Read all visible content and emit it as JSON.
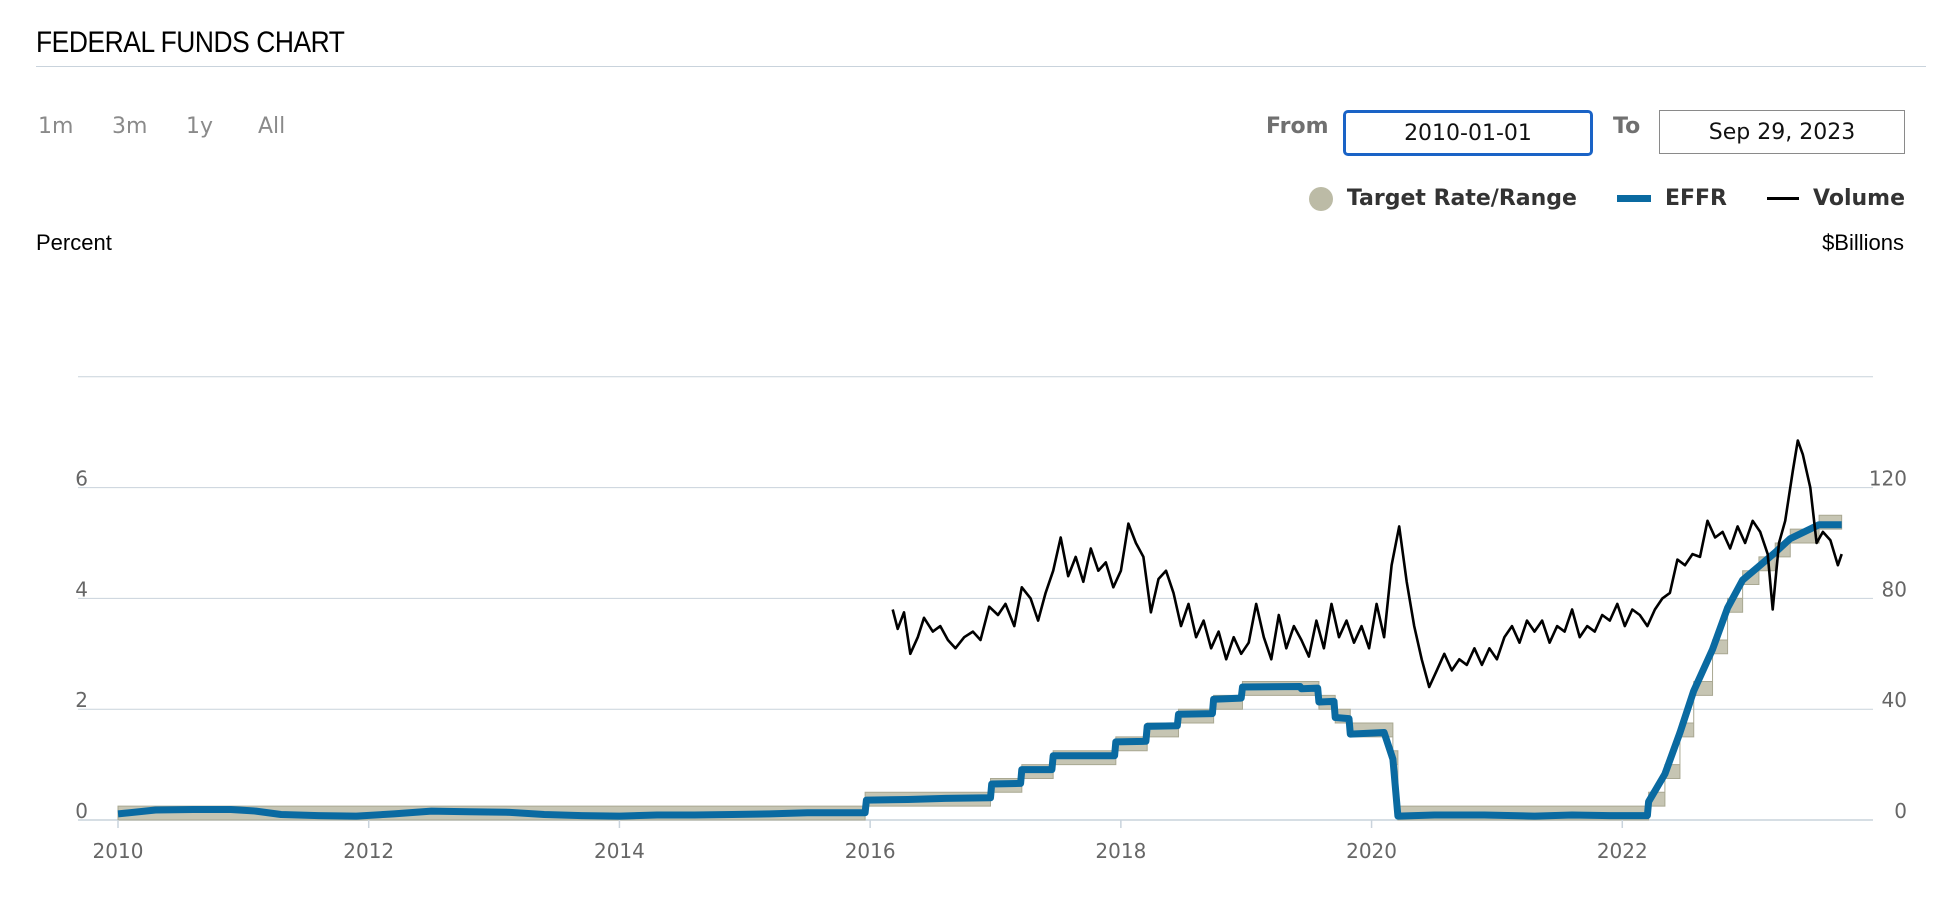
{
  "header": {
    "title": "FEDERAL FUNDS CHART"
  },
  "ranges": [
    "1m",
    "3m",
    "1y",
    "All"
  ],
  "date_range": {
    "from_label": "From",
    "from_value": "2010-01-01",
    "to_label": "To",
    "to_value": "Sep 29, 2023"
  },
  "legend": {
    "target": "Target Rate/Range",
    "effr": "EFFR",
    "volume": "Volume"
  },
  "colors": {
    "target_band": "#bcbba6",
    "effr": "#0a6aa1",
    "volume": "#000000",
    "grid": "#c9d3dc"
  },
  "chart_data": {
    "type": "line",
    "ylabel": "Percent",
    "y2label": "$Billions",
    "xlim": [
      2010.0,
      2024.0
    ],
    "ylim": [
      0,
      8
    ],
    "y2lim": [
      0,
      160
    ],
    "x_ticks": [
      2010,
      2012,
      2014,
      2016,
      2018,
      2020,
      2022
    ],
    "y_ticks": [
      0,
      2,
      4,
      6
    ],
    "y2_ticks": [
      0,
      40,
      80,
      120
    ],
    "grid": true,
    "legend_position": "top-right",
    "series": [
      {
        "name": "Target Rate/Range",
        "type": "area-band",
        "steps": [
          {
            "x": 2010.0,
            "lower": 0,
            "upper": 0.25
          },
          {
            "x": 2015.96,
            "lower": 0.25,
            "upper": 0.5
          },
          {
            "x": 2016.96,
            "lower": 0.5,
            "upper": 0.75
          },
          {
            "x": 2017.21,
            "lower": 0.75,
            "upper": 1.0
          },
          {
            "x": 2017.46,
            "lower": 1.0,
            "upper": 1.25
          },
          {
            "x": 2017.96,
            "lower": 1.25,
            "upper": 1.5
          },
          {
            "x": 2018.21,
            "lower": 1.5,
            "upper": 1.75
          },
          {
            "x": 2018.46,
            "lower": 1.75,
            "upper": 2.0
          },
          {
            "x": 2018.74,
            "lower": 2.0,
            "upper": 2.25
          },
          {
            "x": 2018.97,
            "lower": 2.25,
            "upper": 2.5
          },
          {
            "x": 2019.58,
            "lower": 2.0,
            "upper": 2.25
          },
          {
            "x": 2019.71,
            "lower": 1.75,
            "upper": 2.0
          },
          {
            "x": 2019.83,
            "lower": 1.5,
            "upper": 1.75
          },
          {
            "x": 2020.17,
            "lower": 1.0,
            "upper": 1.25
          },
          {
            "x": 2020.21,
            "lower": 0,
            "upper": 0.25
          },
          {
            "x": 2022.21,
            "lower": 0.25,
            "upper": 0.5
          },
          {
            "x": 2022.34,
            "lower": 0.75,
            "upper": 1.0
          },
          {
            "x": 2022.46,
            "lower": 1.5,
            "upper": 1.75
          },
          {
            "x": 2022.57,
            "lower": 2.25,
            "upper": 2.5
          },
          {
            "x": 2022.72,
            "lower": 3.0,
            "upper": 3.25
          },
          {
            "x": 2022.84,
            "lower": 3.75,
            "upper": 4.0
          },
          {
            "x": 2022.96,
            "lower": 4.25,
            "upper": 4.5
          },
          {
            "x": 2023.09,
            "lower": 4.5,
            "upper": 4.75
          },
          {
            "x": 2023.22,
            "lower": 4.75,
            "upper": 5.0
          },
          {
            "x": 2023.34,
            "lower": 5.0,
            "upper": 5.25
          },
          {
            "x": 2023.57,
            "lower": 5.25,
            "upper": 5.5
          },
          {
            "x": 2023.75,
            "lower": 5.25,
            "upper": 5.5
          }
        ]
      },
      {
        "name": "EFFR",
        "axis": "left",
        "points": [
          [
            2010.0,
            0.11
          ],
          [
            2010.3,
            0.18
          ],
          [
            2010.6,
            0.19
          ],
          [
            2010.9,
            0.19
          ],
          [
            2011.1,
            0.16
          ],
          [
            2011.3,
            0.1
          ],
          [
            2011.6,
            0.08
          ],
          [
            2011.9,
            0.07
          ],
          [
            2012.2,
            0.11
          ],
          [
            2012.5,
            0.16
          ],
          [
            2012.8,
            0.15
          ],
          [
            2013.1,
            0.14
          ],
          [
            2013.4,
            0.1
          ],
          [
            2013.7,
            0.08
          ],
          [
            2014.0,
            0.07
          ],
          [
            2014.3,
            0.09
          ],
          [
            2014.6,
            0.09
          ],
          [
            2014.9,
            0.1
          ],
          [
            2015.2,
            0.11
          ],
          [
            2015.5,
            0.13
          ],
          [
            2015.8,
            0.13
          ],
          [
            2015.96,
            0.13
          ],
          [
            2015.97,
            0.36
          ],
          [
            2016.3,
            0.37
          ],
          [
            2016.6,
            0.39
          ],
          [
            2016.96,
            0.4
          ],
          [
            2016.97,
            0.65
          ],
          [
            2017.2,
            0.66
          ],
          [
            2017.21,
            0.91
          ],
          [
            2017.45,
            0.91
          ],
          [
            2017.46,
            1.16
          ],
          [
            2017.95,
            1.16
          ],
          [
            2017.96,
            1.41
          ],
          [
            2018.2,
            1.42
          ],
          [
            2018.21,
            1.69
          ],
          [
            2018.45,
            1.7
          ],
          [
            2018.46,
            1.91
          ],
          [
            2018.73,
            1.92
          ],
          [
            2018.74,
            2.18
          ],
          [
            2018.96,
            2.2
          ],
          [
            2018.97,
            2.4
          ],
          [
            2019.43,
            2.41
          ],
          [
            2019.44,
            2.37
          ],
          [
            2019.57,
            2.38
          ],
          [
            2019.58,
            2.13
          ],
          [
            2019.7,
            2.14
          ],
          [
            2019.71,
            1.85
          ],
          [
            2019.82,
            1.83
          ],
          [
            2019.83,
            1.55
          ],
          [
            2020.1,
            1.58
          ],
          [
            2020.17,
            1.1
          ],
          [
            2020.21,
            0.07
          ],
          [
            2020.5,
            0.09
          ],
          [
            2020.9,
            0.09
          ],
          [
            2021.3,
            0.07
          ],
          [
            2021.6,
            0.09
          ],
          [
            2021.9,
            0.08
          ],
          [
            2022.2,
            0.08
          ],
          [
            2022.21,
            0.33
          ],
          [
            2022.34,
            0.83
          ],
          [
            2022.46,
            1.58
          ],
          [
            2022.57,
            2.33
          ],
          [
            2022.72,
            3.08
          ],
          [
            2022.84,
            3.83
          ],
          [
            2022.96,
            4.33
          ],
          [
            2023.09,
            4.58
          ],
          [
            2023.22,
            4.83
          ],
          [
            2023.34,
            5.08
          ],
          [
            2023.57,
            5.33
          ],
          [
            2023.75,
            5.33
          ]
        ]
      },
      {
        "name": "Volume",
        "axis": "right",
        "points": [
          [
            2016.18,
            76
          ],
          [
            2016.22,
            69
          ],
          [
            2016.27,
            75
          ],
          [
            2016.32,
            60
          ],
          [
            2016.38,
            66
          ],
          [
            2016.43,
            73
          ],
          [
            2016.5,
            68
          ],
          [
            2016.56,
            70
          ],
          [
            2016.62,
            65
          ],
          [
            2016.68,
            62
          ],
          [
            2016.75,
            66
          ],
          [
            2016.82,
            68
          ],
          [
            2016.88,
            65
          ],
          [
            2016.95,
            77
          ],
          [
            2017.02,
            74
          ],
          [
            2017.08,
            78
          ],
          [
            2017.15,
            70
          ],
          [
            2017.21,
            84
          ],
          [
            2017.28,
            80
          ],
          [
            2017.34,
            72
          ],
          [
            2017.4,
            82
          ],
          [
            2017.46,
            90
          ],
          [
            2017.52,
            102
          ],
          [
            2017.58,
            88
          ],
          [
            2017.64,
            95
          ],
          [
            2017.7,
            86
          ],
          [
            2017.76,
            98
          ],
          [
            2017.82,
            90
          ],
          [
            2017.88,
            93
          ],
          [
            2017.94,
            84
          ],
          [
            2018.0,
            90
          ],
          [
            2018.06,
            107
          ],
          [
            2018.12,
            100
          ],
          [
            2018.18,
            95
          ],
          [
            2018.24,
            75
          ],
          [
            2018.3,
            87
          ],
          [
            2018.36,
            90
          ],
          [
            2018.42,
            82
          ],
          [
            2018.48,
            70
          ],
          [
            2018.54,
            78
          ],
          [
            2018.6,
            66
          ],
          [
            2018.66,
            72
          ],
          [
            2018.72,
            62
          ],
          [
            2018.78,
            68
          ],
          [
            2018.84,
            58
          ],
          [
            2018.9,
            66
          ],
          [
            2018.96,
            60
          ],
          [
            2019.02,
            64
          ],
          [
            2019.08,
            78
          ],
          [
            2019.14,
            66
          ],
          [
            2019.2,
            58
          ],
          [
            2019.26,
            74
          ],
          [
            2019.32,
            62
          ],
          [
            2019.38,
            70
          ],
          [
            2019.44,
            65
          ],
          [
            2019.5,
            59
          ],
          [
            2019.56,
            72
          ],
          [
            2019.62,
            62
          ],
          [
            2019.68,
            78
          ],
          [
            2019.74,
            66
          ],
          [
            2019.8,
            72
          ],
          [
            2019.86,
            64
          ],
          [
            2019.92,
            70
          ],
          [
            2019.98,
            62
          ],
          [
            2020.04,
            78
          ],
          [
            2020.1,
            66
          ],
          [
            2020.16,
            92
          ],
          [
            2020.22,
            106
          ],
          [
            2020.28,
            86
          ],
          [
            2020.34,
            70
          ],
          [
            2020.4,
            58
          ],
          [
            2020.46,
            48
          ],
          [
            2020.52,
            54
          ],
          [
            2020.58,
            60
          ],
          [
            2020.64,
            54
          ],
          [
            2020.7,
            58
          ],
          [
            2020.76,
            56
          ],
          [
            2020.82,
            62
          ],
          [
            2020.88,
            56
          ],
          [
            2020.94,
            62
          ],
          [
            2021.0,
            58
          ],
          [
            2021.06,
            66
          ],
          [
            2021.12,
            70
          ],
          [
            2021.18,
            64
          ],
          [
            2021.24,
            72
          ],
          [
            2021.3,
            68
          ],
          [
            2021.36,
            72
          ],
          [
            2021.42,
            64
          ],
          [
            2021.48,
            70
          ],
          [
            2021.54,
            68
          ],
          [
            2021.6,
            76
          ],
          [
            2021.66,
            66
          ],
          [
            2021.72,
            70
          ],
          [
            2021.78,
            68
          ],
          [
            2021.84,
            74
          ],
          [
            2021.9,
            72
          ],
          [
            2021.96,
            78
          ],
          [
            2022.02,
            70
          ],
          [
            2022.08,
            76
          ],
          [
            2022.14,
            74
          ],
          [
            2022.2,
            70
          ],
          [
            2022.26,
            76
          ],
          [
            2022.32,
            80
          ],
          [
            2022.38,
            82
          ],
          [
            2022.44,
            94
          ],
          [
            2022.5,
            92
          ],
          [
            2022.56,
            96
          ],
          [
            2022.62,
            95
          ],
          [
            2022.68,
            108
          ],
          [
            2022.74,
            102
          ],
          [
            2022.8,
            104
          ],
          [
            2022.86,
            98
          ],
          [
            2022.92,
            106
          ],
          [
            2022.98,
            100
          ],
          [
            2023.04,
            108
          ],
          [
            2023.1,
            104
          ],
          [
            2023.16,
            96
          ],
          [
            2023.2,
            76
          ],
          [
            2023.25,
            100
          ],
          [
            2023.3,
            108
          ],
          [
            2023.36,
            126
          ],
          [
            2023.4,
            137
          ],
          [
            2023.44,
            132
          ],
          [
            2023.5,
            120
          ],
          [
            2023.55,
            100
          ],
          [
            2023.6,
            104
          ],
          [
            2023.66,
            101
          ],
          [
            2023.72,
            92
          ],
          [
            2023.75,
            96
          ]
        ]
      }
    ]
  }
}
